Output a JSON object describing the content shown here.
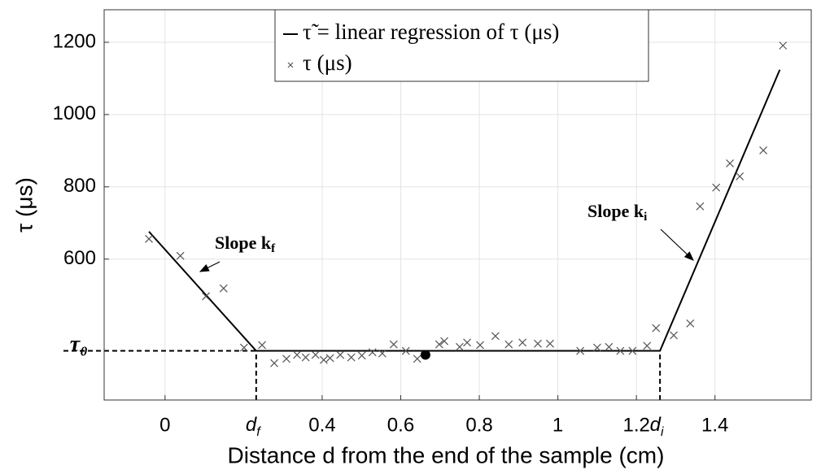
{
  "chart_data": {
    "type": "scatter_line",
    "xlabel": "Distance d from the end of the sample (cm)",
    "ylabel": "τ (μs)",
    "xlim": [
      -0.155,
      1.645
    ],
    "ylim": [
      210,
      1290
    ],
    "xticks": [
      0,
      {
        "value": 0.232,
        "label": "d",
        "sub": "f"
      },
      0.4,
      0.6,
      0.8,
      1,
      {
        "value": 1.26,
        "label": "d",
        "sub": "i"
      },
      1.2,
      1.4
    ],
    "yticks": [
      {
        "value": 346,
        "label": "τ₀"
      },
      600,
      800,
      1000,
      1200
    ],
    "grid": true,
    "series": [
      {
        "name": "τ̃ = linear regression of τ (μs)",
        "kind": "line",
        "color": "#000000",
        "x": [
          -0.041,
          0.232,
          1.26,
          1.565
        ],
        "values": [
          676,
          346,
          346,
          1124
        ]
      },
      {
        "name": "τ (μs)",
        "kind": "marker",
        "color": "#555555",
        "x": [
          -0.041,
          0.039,
          0.104,
          0.149,
          0.201,
          0.247,
          0.278,
          0.309,
          0.336,
          0.358,
          0.383,
          0.404,
          0.42,
          0.446,
          0.474,
          0.501,
          0.528,
          0.553,
          0.582,
          0.613,
          0.642,
          0.698,
          0.711,
          0.75,
          0.769,
          0.802,
          0.841,
          0.875,
          0.91,
          0.949,
          0.98,
          1.057,
          1.1,
          1.13,
          1.159,
          1.19,
          1.227,
          1.25,
          1.295,
          1.337,
          1.362,
          1.403,
          1.438,
          1.463,
          1.523,
          1.573
        ],
        "values": [
          656,
          609,
          497,
          519,
          355,
          362,
          312,
          324,
          335,
          328,
          335,
          321,
          326,
          335,
          328,
          333,
          342,
          339,
          364,
          346,
          324,
          364,
          373,
          357,
          369,
          362,
          387,
          364,
          369,
          366,
          366,
          346,
          355,
          357,
          346,
          346,
          360,
          409,
          389,
          422,
          746,
          798,
          865,
          829,
          901,
          1191
        ]
      }
    ],
    "highlight_point": {
      "x": 0.663,
      "y": 335
    },
    "annotations": [
      {
        "text": "Slope k",
        "sub": "f"
      },
      {
        "text": "Slope k",
        "sub": "i"
      }
    ]
  }
}
